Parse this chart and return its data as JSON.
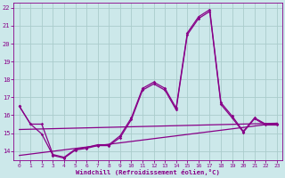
{
  "xlabel": "Windchill (Refroidissement éolien,°C)",
  "bg_color": "#cce8ea",
  "grid_color": "#aacccc",
  "line_color": "#880088",
  "x_values": [
    0,
    1,
    2,
    3,
    4,
    5,
    6,
    7,
    8,
    9,
    10,
    11,
    12,
    13,
    14,
    15,
    16,
    17,
    18,
    19,
    20,
    21,
    22,
    23
  ],
  "series1": [
    16.5,
    15.5,
    15.5,
    13.8,
    13.65,
    14.1,
    14.2,
    14.35,
    14.35,
    14.85,
    15.85,
    17.5,
    17.85,
    17.5,
    16.4,
    20.6,
    21.5,
    21.9,
    16.7,
    15.95,
    15.1,
    15.85,
    15.5,
    15.5
  ],
  "series2": [
    16.5,
    15.5,
    14.95,
    13.75,
    13.6,
    14.05,
    14.15,
    14.3,
    14.3,
    14.75,
    15.75,
    17.4,
    17.75,
    17.4,
    16.3,
    20.5,
    21.4,
    21.8,
    16.6,
    15.85,
    15.05,
    15.8,
    15.45,
    15.45
  ],
  "trend1_x": [
    0,
    23
  ],
  "trend1_y": [
    15.2,
    15.55
  ],
  "trend2_x": [
    0,
    23
  ],
  "trend2_y": [
    13.75,
    15.55
  ],
  "ylim": [
    13.5,
    22.3
  ],
  "xlim": [
    -0.5,
    23.5
  ],
  "yticks": [
    14,
    15,
    16,
    17,
    18,
    19,
    20,
    21,
    22
  ],
  "xticks": [
    0,
    1,
    2,
    3,
    4,
    5,
    6,
    7,
    8,
    9,
    10,
    11,
    12,
    13,
    14,
    15,
    16,
    17,
    18,
    19,
    20,
    21,
    22,
    23
  ],
  "figsize": [
    3.2,
    2.0
  ],
  "dpi": 100
}
